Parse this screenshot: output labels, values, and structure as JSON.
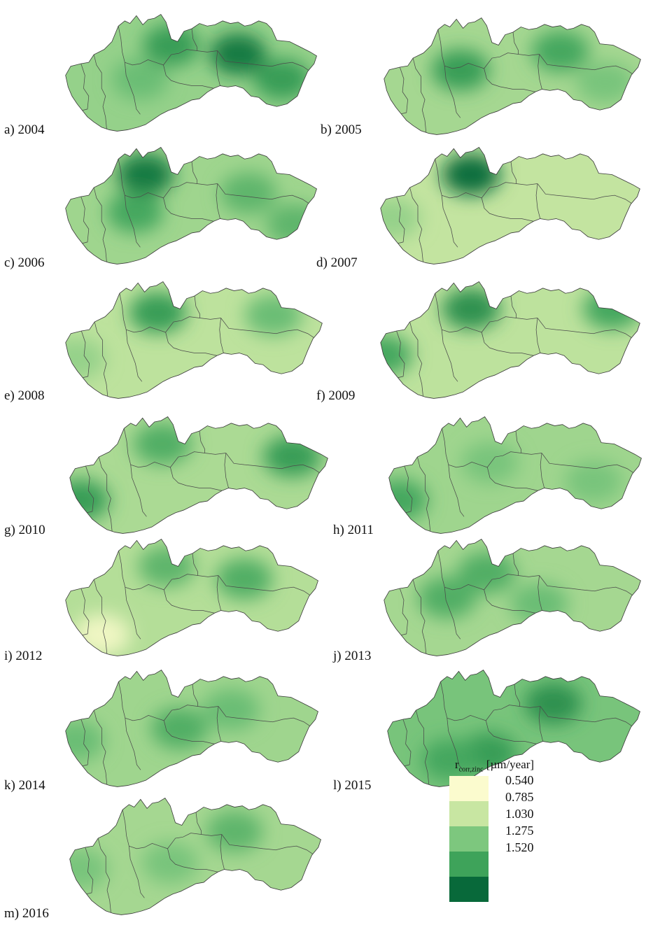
{
  "legend": {
    "title_symbol": "r",
    "title_subscript": "corr,zinc",
    "title_unit": "[µm/year]",
    "classes": [
      {
        "value": "0.540",
        "color": "#fbfbce"
      },
      {
        "value": "0.785",
        "color": "#c8e6a2"
      },
      {
        "value": "1.030",
        "color": "#7dc77e"
      },
      {
        "value": "1.275",
        "color": "#3ea35a"
      },
      {
        "value": "1.520",
        "color": "#08693a"
      }
    ]
  },
  "maps": [
    {
      "caption": "a) 2004",
      "year": 2004,
      "base_level": 0.95,
      "hotspots": [
        {
          "lon": 0.42,
          "lat": 0.28,
          "level": 1.3
        },
        {
          "lon": 0.68,
          "lat": 0.35,
          "level": 1.45
        },
        {
          "lon": 0.85,
          "lat": 0.55,
          "level": 1.3
        },
        {
          "lon": 0.3,
          "lat": 0.55,
          "level": 1.1
        }
      ]
    },
    {
      "caption": "b) 2005",
      "year": 2005,
      "base_level": 0.9,
      "hotspots": [
        {
          "lon": 0.3,
          "lat": 0.45,
          "level": 1.3
        },
        {
          "lon": 0.68,
          "lat": 0.3,
          "level": 1.25
        },
        {
          "lon": 0.85,
          "lat": 0.55,
          "level": 1.05
        }
      ]
    },
    {
      "caption": "c) 2006",
      "year": 2006,
      "base_level": 0.92,
      "hotspots": [
        {
          "lon": 0.32,
          "lat": 0.25,
          "level": 1.45
        },
        {
          "lon": 0.28,
          "lat": 0.55,
          "level": 1.25
        },
        {
          "lon": 0.72,
          "lat": 0.4,
          "level": 1.15
        },
        {
          "lon": 0.9,
          "lat": 0.65,
          "level": 1.15
        }
      ]
    },
    {
      "caption": "d) 2007",
      "year": 2007,
      "base_level": 0.8,
      "hotspots": [
        {
          "lon": 0.35,
          "lat": 0.25,
          "level": 1.5
        },
        {
          "lon": 0.05,
          "lat": 0.6,
          "level": 0.95
        }
      ]
    },
    {
      "caption": "e) 2008",
      "year": 2008,
      "base_level": 0.82,
      "hotspots": [
        {
          "lon": 0.36,
          "lat": 0.28,
          "level": 1.3
        },
        {
          "lon": 0.8,
          "lat": 0.3,
          "level": 1.1
        },
        {
          "lon": 0.05,
          "lat": 0.65,
          "level": 0.95
        }
      ]
    },
    {
      "caption": "f) 2009",
      "year": 2009,
      "base_level": 0.82,
      "hotspots": [
        {
          "lon": 0.35,
          "lat": 0.25,
          "level": 1.35
        },
        {
          "lon": 0.88,
          "lat": 0.25,
          "level": 1.25
        },
        {
          "lon": 0.02,
          "lat": 0.62,
          "level": 1.25
        }
      ]
    },
    {
      "caption": "g) 2010",
      "year": 2010,
      "base_level": 0.88,
      "hotspots": [
        {
          "lon": 0.36,
          "lat": 0.25,
          "level": 1.2
        },
        {
          "lon": 0.85,
          "lat": 0.35,
          "level": 1.3
        },
        {
          "lon": 0.05,
          "lat": 0.7,
          "level": 1.3
        }
      ]
    },
    {
      "caption": "h) 2011",
      "year": 2011,
      "base_level": 0.92,
      "hotspots": [
        {
          "lon": 0.4,
          "lat": 0.4,
          "level": 1.05
        },
        {
          "lon": 0.05,
          "lat": 0.7,
          "level": 1.25
        },
        {
          "lon": 0.8,
          "lat": 0.55,
          "level": 1.05
        }
      ]
    },
    {
      "caption": "i) 2012",
      "year": 2012,
      "base_level": 0.85,
      "hotspots": [
        {
          "lon": 0.4,
          "lat": 0.25,
          "level": 1.15
        },
        {
          "lon": 0.7,
          "lat": 0.35,
          "level": 1.2
        },
        {
          "lon": 0.15,
          "lat": 0.8,
          "level": 0.6
        }
      ]
    },
    {
      "caption": "j) 2013",
      "year": 2013,
      "base_level": 0.9,
      "hotspots": [
        {
          "lon": 0.4,
          "lat": 0.3,
          "level": 1.2
        },
        {
          "lon": 0.25,
          "lat": 0.5,
          "level": 1.2
        },
        {
          "lon": 0.6,
          "lat": 0.55,
          "level": 1.1
        }
      ]
    },
    {
      "caption": "k) 2014",
      "year": 2014,
      "base_level": 0.92,
      "hotspots": [
        {
          "lon": 0.45,
          "lat": 0.5,
          "level": 1.2
        },
        {
          "lon": 0.65,
          "lat": 0.35,
          "level": 1.1
        },
        {
          "lon": 0.05,
          "lat": 0.6,
          "level": 1.1
        }
      ]
    },
    {
      "caption": "l) 2015",
      "year": 2015,
      "base_level": 1.05,
      "hotspots": [
        {
          "lon": 0.65,
          "lat": 0.3,
          "level": 1.35
        },
        {
          "lon": 0.4,
          "lat": 0.7,
          "level": 1.3
        },
        {
          "lon": 0.25,
          "lat": 0.75,
          "level": 1.25
        }
      ]
    },
    {
      "caption": "m) 2016",
      "year": 2016,
      "base_level": 0.9,
      "hotspots": [
        {
          "lon": 0.65,
          "lat": 0.3,
          "level": 1.15
        },
        {
          "lon": 0.4,
          "lat": 0.55,
          "level": 1.05
        },
        {
          "lon": 0.05,
          "lat": 0.6,
          "level": 1.05
        }
      ]
    }
  ]
}
